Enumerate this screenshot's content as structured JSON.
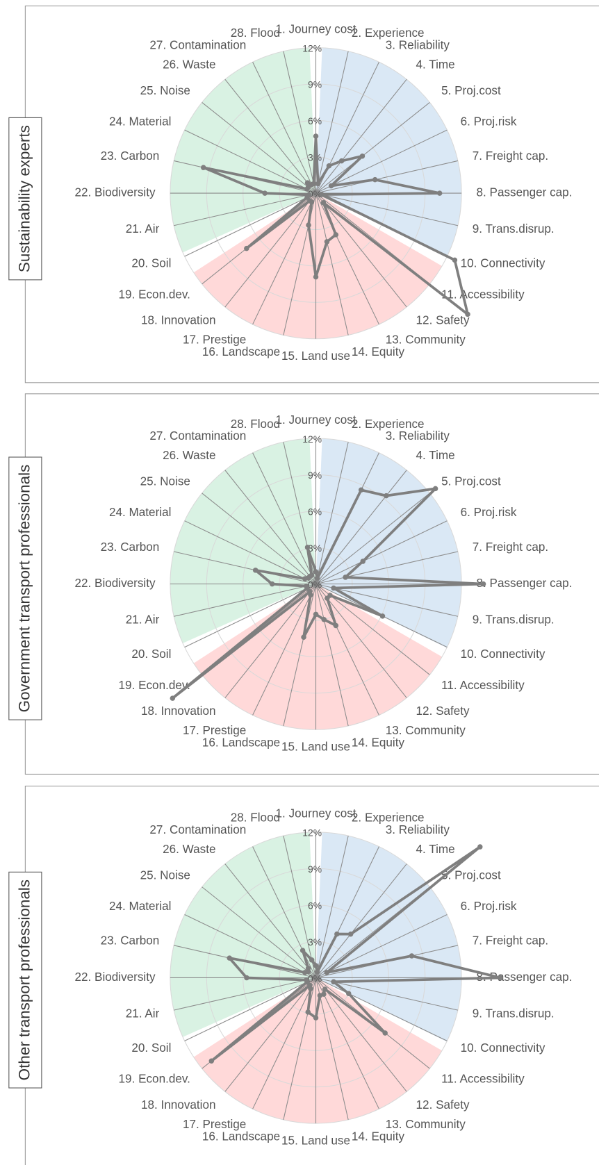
{
  "chart_data": [
    {
      "type": "radar",
      "title": "Sustainability experts",
      "categories": [
        "1. Journey cost",
        "2. Experience",
        "3. Reliability",
        "4. Time",
        "5. Proj.cost",
        "6. Proj.risk",
        "7. Freight cap.",
        "8. Passenger cap.",
        "9. Trans.disrup.",
        "10. Connectivity",
        "11. Accessibility",
        "12. Safety",
        "13. Community",
        "14. Equity",
        "15. Land use",
        "16. Landscape",
        "17. Prestige",
        "18. Innovation",
        "19. Econ.dev.",
        "20. Soil",
        "21. Air",
        "22. Biodiversity",
        "23. Carbon",
        "24. Material",
        "25. Noise",
        "26. Waste",
        "27. Contamination",
        "28. Flood"
      ],
      "values": [
        4.7,
        0.8,
        2.5,
        3.4,
        4.9,
        1.4,
        5.0,
        10.2,
        0.5,
        12.7,
        16.0,
        1.0,
        3.8,
        4.1,
        6.9,
        2.7,
        0.8,
        0.8,
        7.3,
        0.8,
        0.6,
        4.2,
        9.5,
        0.8,
        0.8,
        1.1,
        0.8,
        0.8
      ],
      "color": "#7f7f7f",
      "ylim": [
        0,
        12
      ],
      "yticks": [
        {
          "value": 0,
          "label": "0%"
        },
        {
          "value": 3,
          "label": "3%"
        },
        {
          "value": 6,
          "label": "6%"
        },
        {
          "value": 9,
          "label": "9%"
        },
        {
          "value": 12,
          "label": "12%"
        }
      ],
      "grid": true
    },
    {
      "type": "radar",
      "title": "Government transport professionals",
      "categories": [
        "1. Journey cost",
        "2. Experience",
        "3. Reliability",
        "4. Time",
        "5. Proj.cost",
        "6. Proj.risk",
        "7. Freight cap.",
        "8. Passenger cap.",
        "9. Trans.disrup.",
        "10. Connectivity",
        "11. Accessibility",
        "12. Safety",
        "13. Community",
        "14. Equity",
        "15. Land use",
        "16. Landscape",
        "17. Prestige",
        "18. Innovation",
        "19. Econ.dev.",
        "20. Soil",
        "21. Air",
        "22. Biodiversity",
        "23. Carbon",
        "24. Material",
        "25. Noise",
        "26. Waste",
        "27. Contamination",
        "28. Flood"
      ],
      "values": [
        1.0,
        0.5,
        8.6,
        9.3,
        12.6,
        4.3,
        2.5,
        13.8,
        1.5,
        6.1,
        1.5,
        1.5,
        3.8,
        3.0,
        2.5,
        4.5,
        1.0,
        0.8,
        15.1,
        0.8,
        0.8,
        3.6,
        5.1,
        1.0,
        0.8,
        0.8,
        0.8,
        3.1
      ],
      "color": "#7f7f7f",
      "ylim": [
        0,
        12
      ],
      "yticks": [
        {
          "value": 0,
          "label": "0%"
        },
        {
          "value": 3,
          "label": "3%"
        },
        {
          "value": 6,
          "label": "6%"
        },
        {
          "value": 9,
          "label": "9%"
        },
        {
          "value": 12,
          "label": "12%"
        }
      ],
      "grid": true
    },
    {
      "type": "radar",
      "title": "Other transport professionals",
      "categories": [
        "1. Journey cost",
        "2. Experience",
        "3. Reliability",
        "4. Time",
        "5. Proj.cost",
        "6. Proj.risk",
        "7. Freight cap.",
        "8. Passenger cap.",
        "9. Trans.disrup.",
        "10. Connectivity",
        "11. Accessibility",
        "12. Safety",
        "13. Community",
        "14. Equity",
        "15. Land use",
        "16. Landscape",
        "17. Prestige",
        "18. Innovation",
        "19. Econ.dev.",
        "20. Soil",
        "21. Air",
        "22. Biodiversity",
        "23. Carbon",
        "24. Material",
        "25. Noise",
        "26. Waste",
        "27. Contamination",
        "28. Flood"
      ],
      "values": [
        1.0,
        0.5,
        4.0,
        4.6,
        17.3,
        1.0,
        8.1,
        15.2,
        1.5,
        3.0,
        7.3,
        1.2,
        1.5,
        1.5,
        3.3,
        2.9,
        1.0,
        0.8,
        11.0,
        0.8,
        0.8,
        5.7,
        7.3,
        1.0,
        0.8,
        1.0,
        2.5,
        1.5
      ],
      "color": "#7f7f7f",
      "ylim": [
        0,
        12
      ],
      "yticks": [
        {
          "value": 0,
          "label": "0%"
        },
        {
          "value": 3,
          "label": "3%"
        },
        {
          "value": 6,
          "label": "6%"
        },
        {
          "value": 9,
          "label": "9%"
        },
        {
          "value": 12,
          "label": "12%"
        }
      ],
      "grid": true
    }
  ]
}
